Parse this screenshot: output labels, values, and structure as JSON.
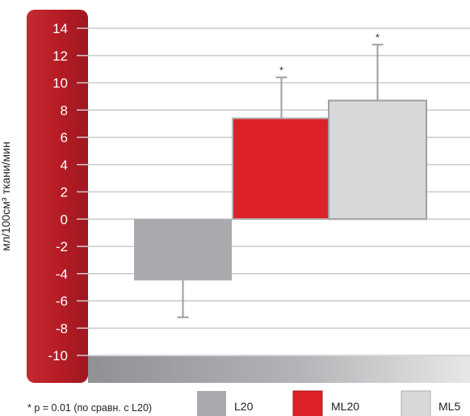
{
  "chart_data": {
    "type": "bar",
    "categories": [
      "L20",
      "ML20",
      "ML5"
    ],
    "values": [
      -4.5,
      7.4,
      8.7
    ],
    "errors": [
      2.7,
      3.0,
      4.1
    ],
    "annotations": [
      "",
      "*",
      "*"
    ],
    "ylabel": "мл/100см³ ткани/мин",
    "ylim": [
      -10,
      14
    ],
    "yticks": [
      14,
      12,
      10,
      8,
      6,
      4,
      2,
      0,
      -2,
      -4,
      -6,
      -8,
      -10
    ],
    "grid": true,
    "legend": {
      "position": "bottom",
      "entries": [
        "L20",
        "ML20",
        "ML5"
      ]
    },
    "footnote": "* p = 0.01 (по сравн. с  L20)"
  },
  "colors": {
    "axis_band": "#c0202c",
    "L20": "#a8aaad",
    "ML20": "#dc2129",
    "ML5": "#d7d8da",
    "grid": "#c9cacc",
    "bottom_band": "#9d9fa2",
    "error_bar": "#9c9ea1"
  }
}
